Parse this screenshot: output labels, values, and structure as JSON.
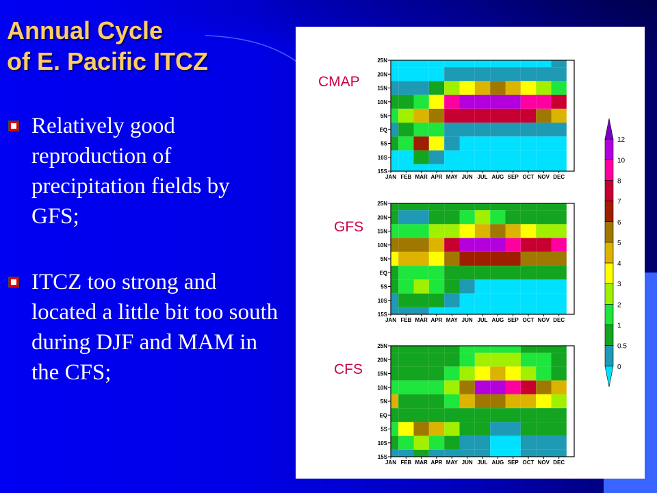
{
  "slide": {
    "title_lines": [
      "Annual Cycle",
      "of E. Pacific ITCZ"
    ],
    "bullets": [
      "Relatively good reproduction of precipitation fields by GFS;",
      "ITCZ too strong and located a little bit too south during DJF and MAM in the CFS;"
    ]
  },
  "colors": {
    "title": "#ffcc66",
    "bullet_text": "#ffffff",
    "panel_label": "#cc0044",
    "accent": "#3a64ff"
  },
  "chart_data": {
    "type": "heatmap",
    "months": [
      "JAN",
      "FEB",
      "MAR",
      "APR",
      "MAY",
      "JUN",
      "JUL",
      "AUG",
      "SEP",
      "OCT",
      "NOV",
      "DEC"
    ],
    "latitudes": [
      "25N",
      "20N",
      "15N",
      "10N",
      "5N",
      "EQ",
      "5S",
      "10S",
      "15S"
    ],
    "panels": [
      {
        "label": "CMAP",
        "grid": [
          [
            0,
            0,
            0,
            0,
            0,
            0,
            0,
            0,
            0,
            0,
            0,
            0.5
          ],
          [
            0,
            0,
            0,
            0,
            0.5,
            0.5,
            0.5,
            0.5,
            0.5,
            0.5,
            0.5,
            0.5
          ],
          [
            0.5,
            0.5,
            0.5,
            1,
            3,
            4,
            5,
            6,
            5,
            4,
            3,
            2
          ],
          [
            1,
            1,
            2,
            4,
            10,
            12,
            12,
            12,
            12,
            10,
            10,
            8
          ],
          [
            2,
            3,
            5,
            6,
            8,
            8,
            8,
            8,
            8,
            8,
            6,
            5
          ],
          [
            0.5,
            1,
            2,
            2,
            0.5,
            0.5,
            0.5,
            0.5,
            0.5,
            0.5,
            0.5,
            0.5
          ],
          [
            1,
            2,
            7,
            4,
            0.5,
            0,
            0,
            0,
            0,
            0,
            0,
            0
          ],
          [
            0,
            0,
            1,
            0.5,
            0,
            0,
            0,
            0,
            0,
            0,
            0,
            0
          ],
          [
            0,
            0,
            0,
            0,
            0,
            0,
            0,
            0,
            0,
            0,
            0,
            0
          ]
        ]
      },
      {
        "label": "GFS",
        "grid": [
          [
            1,
            1,
            1,
            1,
            1,
            1,
            1,
            1,
            1,
            1,
            1,
            1
          ],
          [
            1,
            0.5,
            0.5,
            1,
            1,
            2,
            3,
            2,
            1,
            1,
            1,
            1
          ],
          [
            2,
            2,
            2,
            3,
            3,
            4,
            5,
            6,
            5,
            4,
            3,
            3
          ],
          [
            6,
            6,
            6,
            5,
            8,
            12,
            12,
            12,
            10,
            8,
            8,
            10
          ],
          [
            4,
            5,
            5,
            4,
            6,
            7,
            7,
            7,
            7,
            6,
            6,
            6
          ],
          [
            1,
            2,
            2,
            2,
            1,
            1,
            1,
            1,
            1,
            1,
            1,
            1
          ],
          [
            1,
            2,
            3,
            2,
            1,
            0.5,
            0,
            0,
            0,
            0,
            0,
            0
          ],
          [
            0.5,
            1,
            1,
            1,
            0.5,
            0,
            0,
            0,
            0,
            0,
            0,
            0
          ],
          [
            0.5,
            0.5,
            0.5,
            0,
            0,
            0,
            0,
            0,
            0,
            0,
            0,
            0
          ]
        ]
      },
      {
        "label": "CFS",
        "grid": [
          [
            1,
            1,
            1,
            1,
            1,
            2,
            2,
            2,
            2,
            1,
            1,
            1
          ],
          [
            1,
            1,
            1,
            1,
            1,
            2,
            3,
            3,
            3,
            2,
            2,
            1
          ],
          [
            1,
            1,
            1,
            1,
            2,
            3,
            4,
            5,
            4,
            3,
            2,
            1
          ],
          [
            2,
            2,
            2,
            2,
            3,
            6,
            12,
            12,
            10,
            8,
            6,
            5
          ],
          [
            5,
            1,
            1,
            1,
            2,
            5,
            6,
            6,
            5,
            5,
            4,
            3
          ],
          [
            1,
            1,
            1,
            1,
            1,
            1,
            1,
            1,
            1,
            1,
            1,
            1
          ],
          [
            2,
            4,
            6,
            5,
            3,
            1,
            1,
            0.5,
            0.5,
            1,
            1,
            1
          ],
          [
            1,
            2,
            3,
            2,
            1,
            0.5,
            0.5,
            0,
            0,
            0.5,
            0.5,
            0.5
          ],
          [
            0.5,
            0.5,
            1,
            0.5,
            0.5,
            0.5,
            0.5,
            0,
            0,
            0.5,
            0.5,
            0.5
          ]
        ]
      }
    ],
    "colorbar": {
      "levels": [
        "0",
        "0.5",
        "1",
        "2",
        "3",
        "4",
        "5",
        "6",
        "7",
        "8",
        "10",
        "12"
      ],
      "colors": [
        "#00e0ff",
        "#1e9ab4",
        "#14a520",
        "#1ee63c",
        "#a0f000",
        "#ffff00",
        "#dcb400",
        "#a07800",
        "#a01e00",
        "#c80032",
        "#ff00a0",
        "#b400dc",
        "#7800c8"
      ]
    }
  }
}
